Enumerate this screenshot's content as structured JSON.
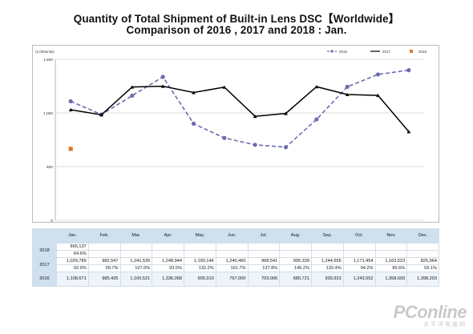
{
  "title_line1": "Quantity of Total Shipment of Built-in Lens DSC【Worldwide】",
  "title_line2": "Comparison of 2016 , 2017 and 2018 : Jan.",
  "watermark": {
    "main": "PConline",
    "sub": "太平洋电脑网"
  },
  "colors": {
    "s2016": "#6b6bb0",
    "s2017": "#000000",
    "s2018": "#d8782f",
    "grid": "#cfcfcf",
    "table_header": "#cfe1f1"
  },
  "chart_data": {
    "type": "line",
    "unit_label": "(1,000units)",
    "ylim": [
      0,
      1500
    ],
    "yticks": [
      0,
      500,
      1000,
      1500
    ],
    "ytick_labels": [
      "0",
      "500",
      "1,000",
      "1,500"
    ],
    "grid": true,
    "legend_position": "top-right",
    "categories": [
      "Jan.",
      "Feb.",
      "Mar.",
      "Apr.",
      "May.",
      "Jun.",
      "Jul.",
      "Aug.",
      "Sep.",
      "Oct.",
      "Nov.",
      "Dec."
    ],
    "series": [
      {
        "name": "2016",
        "style": "dashed-circle",
        "values": [
          1108.671,
          985.435,
          1160.521,
          1336.058,
          900.31,
          767.0,
          703.006,
          680.721,
          939.923,
          1243.552,
          1358.693,
          1398.203
        ]
      },
      {
        "name": "2017",
        "style": "solid-triangle",
        "values": [
          1029.789,
          982.547,
          1241.535,
          1248.944,
          1190.146,
          1240.46,
          968.541,
          995.339,
          1244.555,
          1171.454,
          1163.523,
          825.964
        ]
      },
      {
        "name": "2018",
        "style": "square",
        "values": [
          665.137,
          null,
          null,
          null,
          null,
          null,
          null,
          null,
          null,
          null,
          null,
          null
        ]
      }
    ]
  },
  "table": {
    "months": [
      "Jan.",
      "Feb.",
      "Mar.",
      "Apr.",
      "May.",
      "Jun.",
      "Jul.",
      "Aug.",
      "Sep.",
      "Oct.",
      "Nov.",
      "Dec."
    ],
    "rows": [
      {
        "year": "2018",
        "values": [
          "665,137",
          "",
          "",
          "",
          "",
          "",
          "",
          "",
          "",
          "",
          "",
          ""
        ],
        "pct": [
          "64.6%",
          "",
          "",
          "",
          "",
          "",
          "",
          "",
          "",
          "",
          "",
          ""
        ]
      },
      {
        "year": "2017",
        "values": [
          "1,029,789",
          "982,547",
          "1,241,535",
          "1,248,944",
          "1,190,146",
          "1,240,460",
          "968,541",
          "995,339",
          "1,244,555",
          "1,171,454",
          "1,163,523",
          "825,964"
        ],
        "pct": [
          "92.9%",
          "99.7%",
          "107.0%",
          "93.5%",
          "132.2%",
          "161.7%",
          "137.8%",
          "146.2%",
          "132.4%",
          "94.2%",
          "85.6%",
          "59.1%"
        ]
      },
      {
        "year": "2016",
        "values": [
          "1,108,671",
          "985,435",
          "1,160,521",
          "1,336,058",
          "900,310",
          "767,000",
          "703,006",
          "680,721",
          "939,923",
          "1,243,552",
          "1,358,693",
          "1,398,203"
        ]
      }
    ]
  }
}
